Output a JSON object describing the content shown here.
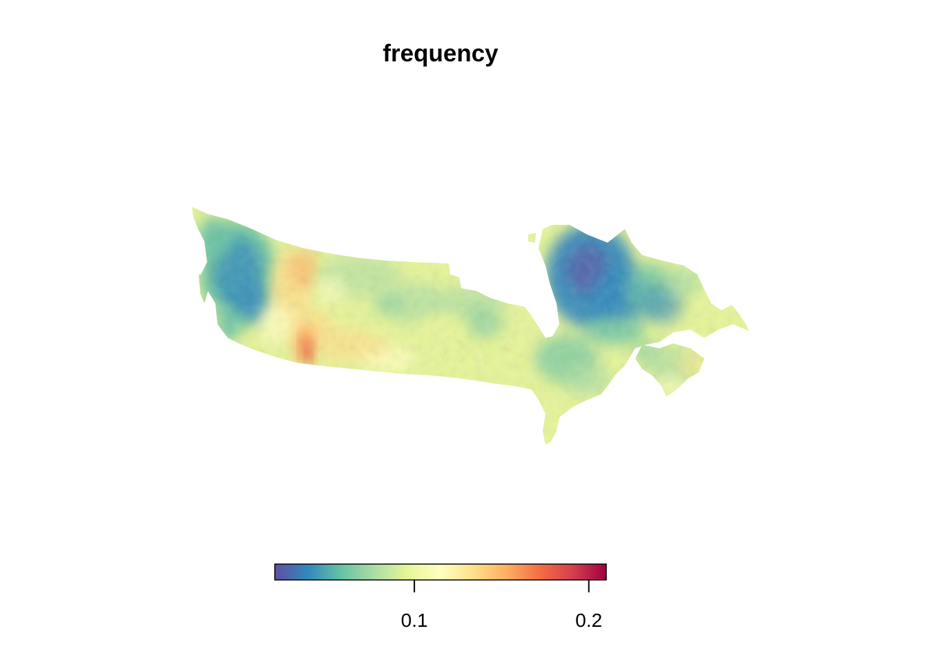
{
  "title": "frequency",
  "map": {
    "region": "Canada",
    "variable": "frequency",
    "colors": {
      "low": "#5e4fa2",
      "blue": "#3288bd",
      "teal": "#66c2a5",
      "green": "#abdda4",
      "yellow_green": "#e6f598",
      "yellow": "#ffffbf",
      "light_orange": "#fee08b",
      "orange": "#fdae61",
      "red_orange": "#f46d43",
      "red": "#d53e4f",
      "high": "#9e0142"
    }
  },
  "legend": {
    "min": 0.02,
    "max": 0.21,
    "ticks": [
      {
        "value": 0.1,
        "label": "0.1"
      },
      {
        "value": 0.2,
        "label": "0.2"
      }
    ],
    "palette": [
      "#5e4fa2",
      "#3288bd",
      "#66c2a5",
      "#abdda4",
      "#e6f598",
      "#ffffbf",
      "#fee08b",
      "#fdae61",
      "#f46d43",
      "#d53e4f",
      "#9e0142"
    ]
  }
}
